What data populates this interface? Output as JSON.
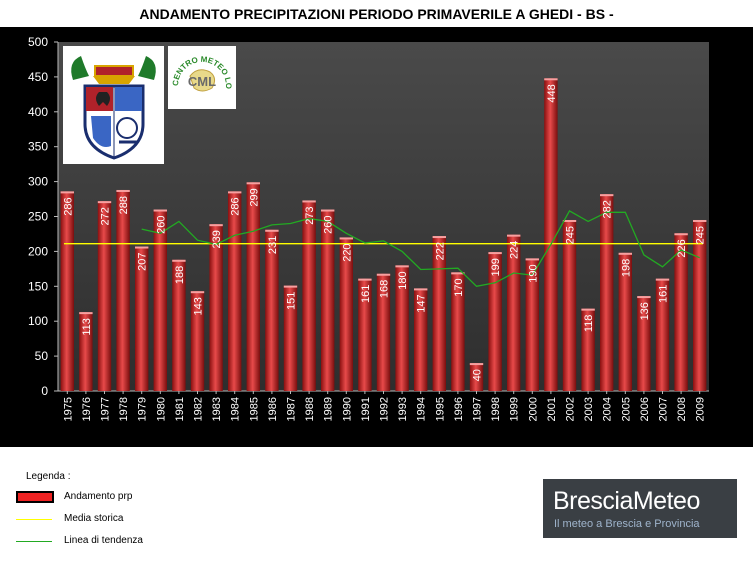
{
  "title": "ANDAMENTO PRECIPITAZIONI PERIODO PRIMAVERILE A GHEDI - BS -",
  "chart_data": {
    "type": "bar",
    "title": "ANDAMENTO PRECIPITAZIONI PERIODO PRIMAVERILE A GHEDI - BS -",
    "xlabel": "",
    "ylabel": "",
    "ylim": [
      0,
      500
    ],
    "yticks": [
      "0",
      "50",
      "100",
      "150",
      "200",
      "250",
      "300",
      "350",
      "400",
      "450",
      "500"
    ],
    "grid": false,
    "categories": [
      "1975",
      "1976",
      "1977",
      "1978",
      "1979",
      "1980",
      "1981",
      "1982",
      "1983",
      "1984",
      "1985",
      "1986",
      "1987",
      "1988",
      "1989",
      "1990",
      "1991",
      "1992",
      "1993",
      "1994",
      "1995",
      "1996",
      "1997",
      "1998",
      "1999",
      "2000",
      "2001",
      "2002",
      "2003",
      "2004",
      "2005",
      "2006",
      "2007",
      "2008",
      "2009"
    ],
    "series": [
      {
        "name": "Andamento prp",
        "kind": "bar",
        "values": [
          286,
          113,
          272,
          288,
          207,
          260,
          188,
          143,
          239,
          286,
          299,
          231,
          151,
          273,
          260,
          220,
          161,
          168,
          180,
          147,
          222,
          170,
          40,
          199,
          224,
          190,
          448,
          245,
          118,
          282,
          198,
          136,
          161,
          226,
          245
        ]
      },
      {
        "name": "Media storica",
        "kind": "line",
        "values": [
          211,
          211,
          211,
          211,
          211,
          211,
          211,
          211,
          211,
          211,
          211,
          211,
          211,
          211,
          211,
          211,
          211,
          211,
          211,
          211,
          211,
          211,
          211,
          211,
          211,
          211,
          211,
          211,
          211,
          211,
          211,
          211,
          211,
          211,
          211
        ]
      },
      {
        "name": "Linea di tendenza",
        "kind": "line",
        "values": [
          null,
          null,
          null,
          null,
          232,
          226,
          243,
          216,
          210,
          223,
          229,
          238,
          240,
          247,
          243,
          226,
          212,
          215,
          200,
          174,
          175,
          176,
          150,
          155,
          169,
          166,
          210,
          258,
          243,
          256,
          256,
          195,
          178,
          202,
          191
        ]
      }
    ],
    "colors": {
      "bar": "#cc2222",
      "bar_light": "#f08080",
      "bar_dark": "#7a0e0e",
      "media_storica": "#ffff00",
      "linea_tendenza": "#22aa22",
      "plot_bg": "#3c3c3c",
      "frame_bg": "#000000",
      "axis_text": "#ffffff"
    },
    "legend_position": "bottom-left"
  },
  "legend": {
    "title": "Legenda :",
    "items": [
      {
        "label": "Andamento prp",
        "color": "#ee2222"
      },
      {
        "label": "Media storica",
        "color": "#ffff00"
      },
      {
        "label": "Linea di tendenza",
        "color": "#22aa22"
      }
    ]
  },
  "logos": {
    "left_name": "provincia-coat-of-arms",
    "right_text": "CENTRO METEO LOMBARDO",
    "right_initials": "CML"
  },
  "brand": {
    "name": "BresciaMeteo",
    "tagline": "Il meteo a Brescia e Provincia"
  }
}
